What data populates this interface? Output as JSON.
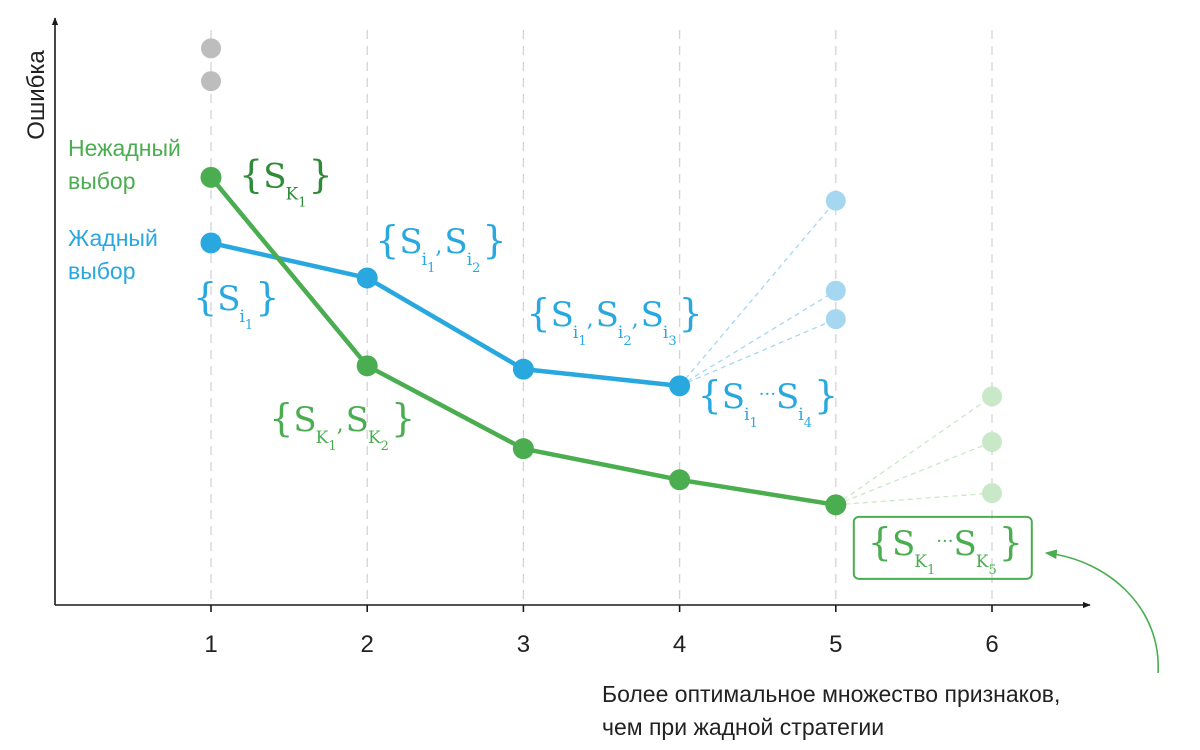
{
  "colors": {
    "greedy": "#29a8e0",
    "nongreedy": "#4aad4f",
    "nongreedy_dark": "#2e8b37",
    "gray_point": "#bdbdbd",
    "greedy_faded": "#a6d7f0",
    "nongreedy_faded": "#c9e8c8",
    "axis": "#1a1a1a",
    "grid": "#d4d4d4",
    "text": "#222222"
  },
  "chart_data": {
    "type": "line",
    "xlabel": "",
    "ylabel": "Ошибка",
    "x": [
      1,
      2,
      3,
      4,
      5,
      6
    ],
    "xticks": [
      "1",
      "2",
      "3",
      "4",
      "5",
      "6"
    ],
    "xlim": [
      0,
      6.6
    ],
    "ylim": [
      0,
      100
    ],
    "grid_x": true,
    "series": [
      {
        "name": "Жадный выбор",
        "name_lines": [
          "Жадный",
          "выбор"
        ],
        "color_key": "greedy",
        "x": [
          1,
          2,
          3,
          4
        ],
        "values": [
          63.5,
          57.2,
          40.8,
          37.8
        ],
        "labels": [
          {
            "set": "i",
            "subs": [
              "1"
            ]
          },
          {
            "set": "i",
            "subs": [
              "1",
              "2"
            ]
          },
          {
            "set": "i",
            "subs": [
              "1",
              "2",
              "3"
            ]
          },
          {
            "set": "i",
            "subs": [
              "1",
              "4"
            ],
            "ellipsis": true
          }
        ]
      },
      {
        "name": "Нежадный выбор",
        "name_lines": [
          "Нежадный",
          "выбор"
        ],
        "color_key": "nongreedy",
        "x": [
          1,
          2,
          3,
          4,
          5
        ],
        "values": [
          75.3,
          41.4,
          26.5,
          20.9,
          16.4
        ],
        "labels": [
          {
            "set": "K",
            "subs": [
              "1"
            ]
          },
          {
            "set": "K",
            "subs": [
              "1",
              "2"
            ]
          },
          null,
          null,
          {
            "set": "K",
            "subs": [
              "1",
              "5"
            ],
            "ellipsis": true
          }
        ]
      }
    ],
    "extra_points": [
      {
        "x": 1,
        "y": 98.5,
        "color_key": "gray_point"
      },
      {
        "x": 1,
        "y": 92.6,
        "color_key": "gray_point"
      },
      {
        "x": 5,
        "y": 71.1,
        "color_key": "greedy_faded",
        "from": [
          4,
          37.8
        ]
      },
      {
        "x": 5,
        "y": 54.9,
        "color_key": "greedy_faded",
        "from": [
          4,
          37.8
        ]
      },
      {
        "x": 5,
        "y": 49.8,
        "color_key": "greedy_faded",
        "from": [
          4,
          37.8
        ]
      },
      {
        "x": 6,
        "y": 35.9,
        "color_key": "nongreedy_faded",
        "from": [
          5,
          16.4
        ]
      },
      {
        "x": 6,
        "y": 27.7,
        "color_key": "nongreedy_faded",
        "from": [
          5,
          16.4
        ]
      },
      {
        "x": 6,
        "y": 18.5,
        "color_key": "nongreedy_faded",
        "from": [
          5,
          16.4
        ]
      }
    ],
    "annotation": {
      "lines": [
        "Более оптимальное множество признаков,",
        "чем при жадной стратегии"
      ],
      "target_series": "Нежадный выбор",
      "target_x": 5
    }
  }
}
